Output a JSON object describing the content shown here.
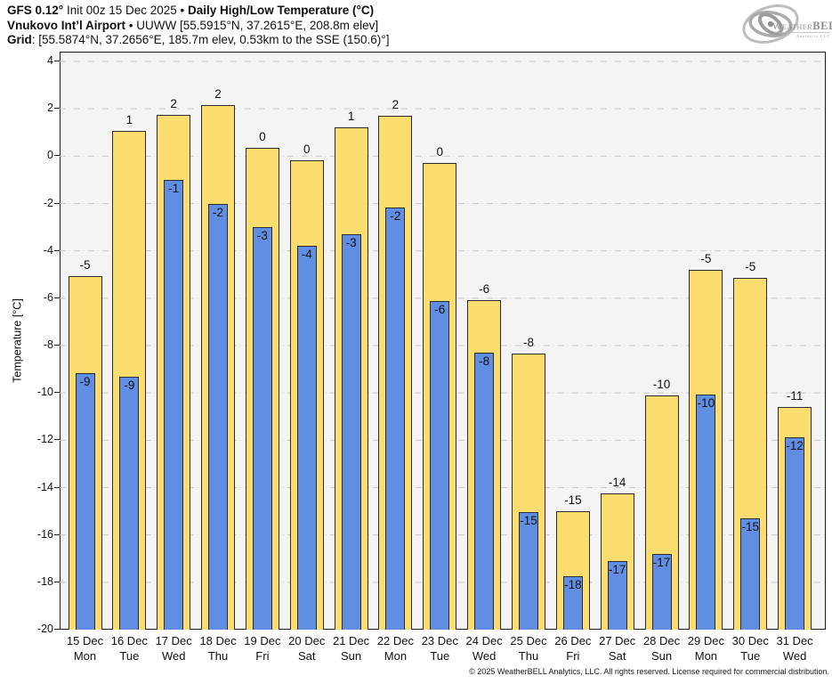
{
  "header": {
    "title_model": "GFS 0.12°",
    "title_init": " Init 00z 15 Dec 2025 • ",
    "title_product": "Daily High/Low Temperature (°C)",
    "station_name": "Vnukovo Int’l Airport",
    "station_details": " • UUWW [55.5915°N, 37.2615°E, 208.8m elev]",
    "grid_label": "Grid",
    "grid_details": ": [55.5874°N, 37.2656°E, 185.7m elev, 0.53km to the SSE (150.6)°]"
  },
  "logo": {
    "brand_weather": "Weather",
    "brand_bell": "BELL",
    "brand_sub": "Analytics LLC"
  },
  "chart_data": {
    "type": "bar",
    "title": "Daily High/Low Temperature (°C)",
    "xlabel": "",
    "ylabel": "Temperature [°C]",
    "ylim": [
      -20,
      4.4
    ],
    "yticks": [
      4,
      2,
      0,
      -2,
      -4,
      -6,
      -8,
      -10,
      -12,
      -14,
      -16,
      -18,
      -20
    ],
    "grid": "horizontal dash-dot",
    "legend": "none",
    "series": {
      "high": {
        "name": "Daily High",
        "color": "#FADC6F"
      },
      "low": {
        "name": "Daily Low",
        "color": "#5F8EE3"
      }
    },
    "bars": [
      {
        "date": "15 Dec",
        "day": "Mon",
        "high": -5,
        "low": -9,
        "high_bar_top": -5.06,
        "low_bar_top": -9.17
      },
      {
        "date": "16 Dec",
        "day": "Tue",
        "high": 1,
        "low": -9,
        "high_bar_top": 1.08,
        "low_bar_top": -9.32
      },
      {
        "date": "17 Dec",
        "day": "Wed",
        "high": 2,
        "low": -1,
        "high_bar_top": 1.74,
        "low_bar_top": -0.99
      },
      {
        "date": "18 Dec",
        "day": "Thu",
        "high": 2,
        "low": -2,
        "high_bar_top": 2.15,
        "low_bar_top": -2.03
      },
      {
        "date": "19 Dec",
        "day": "Fri",
        "high": 0,
        "low": -3,
        "high_bar_top": 0.35,
        "low_bar_top": -3.0
      },
      {
        "date": "20 Dec",
        "day": "Sat",
        "high": 0,
        "low": -4,
        "high_bar_top": -0.17,
        "low_bar_top": -3.78
      },
      {
        "date": "21 Dec",
        "day": "Sun",
        "high": 1,
        "low": -3,
        "high_bar_top": 1.22,
        "low_bar_top": -3.28
      },
      {
        "date": "22 Dec",
        "day": "Mon",
        "high": 2,
        "low": -2,
        "high_bar_top": 1.71,
        "low_bar_top": -2.18
      },
      {
        "date": "23 Dec",
        "day": "Tue",
        "high": 0,
        "low": -6,
        "high_bar_top": -0.3,
        "low_bar_top": -6.11
      },
      {
        "date": "24 Dec",
        "day": "Wed",
        "high": -6,
        "low": -8,
        "high_bar_top": -6.08,
        "low_bar_top": -8.3
      },
      {
        "date": "25 Dec",
        "day": "Thu",
        "high": -8,
        "low": -15,
        "high_bar_top": -8.34,
        "low_bar_top": -15.03
      },
      {
        "date": "26 Dec",
        "day": "Fri",
        "high": -15,
        "low": -18,
        "high_bar_top": -15.0,
        "low_bar_top": -17.73
      },
      {
        "date": "27 Dec",
        "day": "Sat",
        "high": -14,
        "low": -17,
        "high_bar_top": -14.24,
        "low_bar_top": -17.1
      },
      {
        "date": "28 Dec",
        "day": "Sun",
        "high": -10,
        "low": -17,
        "high_bar_top": -10.11,
        "low_bar_top": -16.79
      },
      {
        "date": "29 Dec",
        "day": "Mon",
        "high": -5,
        "low": -10,
        "high_bar_top": -4.79,
        "low_bar_top": -10.06
      },
      {
        "date": "30 Dec",
        "day": "Tue",
        "high": -5,
        "low": -15,
        "high_bar_top": -5.13,
        "low_bar_top": -15.29
      },
      {
        "date": "31 Dec",
        "day": "Wed",
        "high": -11,
        "low": -12,
        "high_bar_top": -10.58,
        "low_bar_top": -11.86
      }
    ]
  },
  "footer": {
    "copyright": "© 2025 WeatherBELL Analytics, LLC. All rights reserved. License required for commercial distribution."
  }
}
